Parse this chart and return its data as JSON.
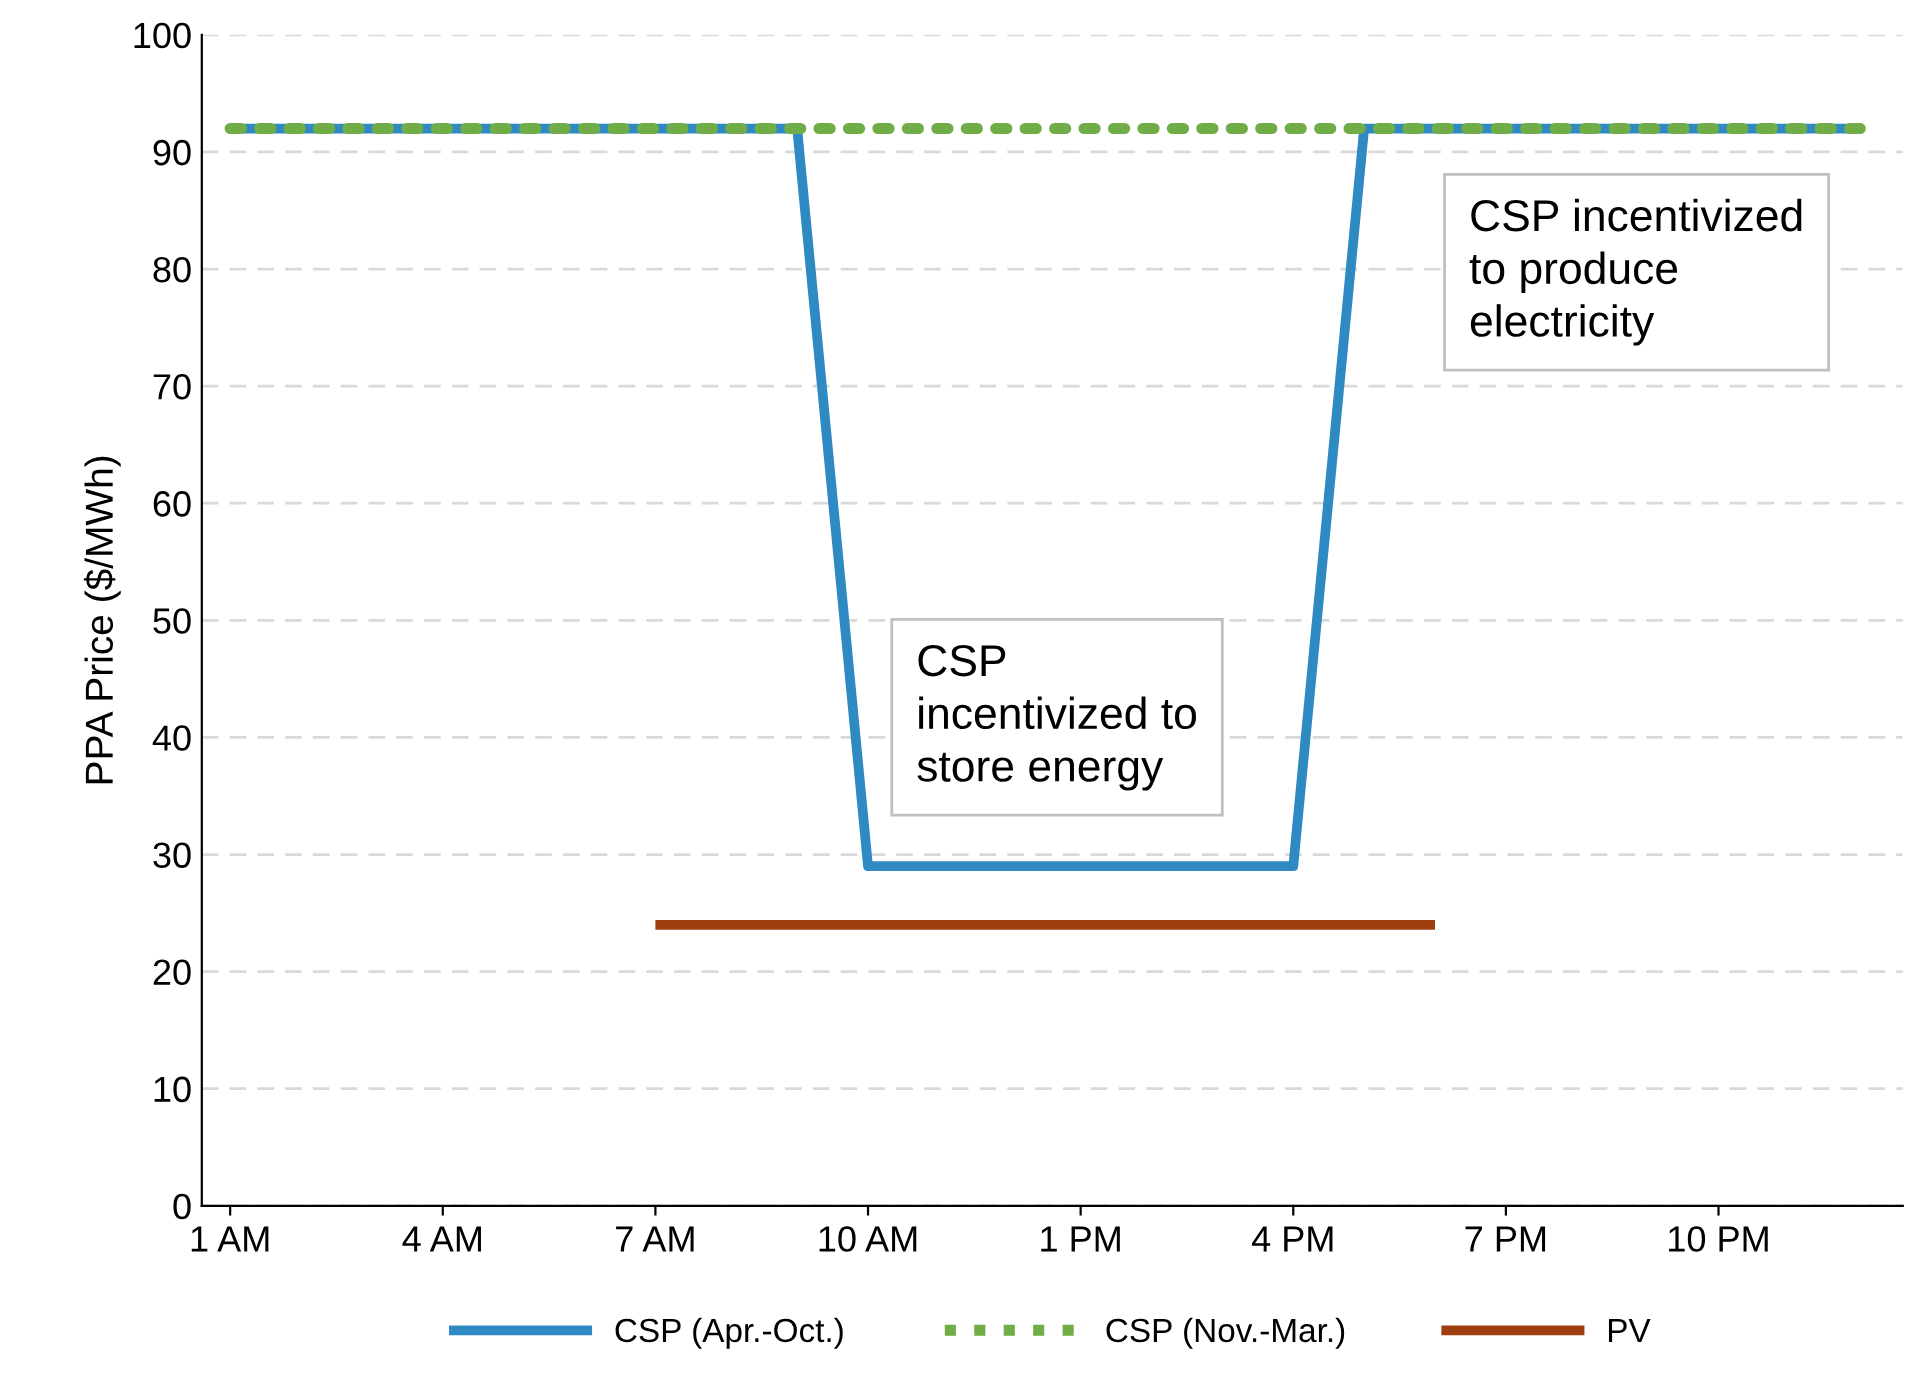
{
  "chart_data": {
    "type": "line",
    "ylabel": "PPA Price ($/MWh)",
    "categories": [
      "1 AM",
      null,
      null,
      "4 AM",
      null,
      null,
      "7 AM",
      null,
      null,
      "10 AM",
      null,
      null,
      "1 PM",
      null,
      null,
      "4 PM",
      null,
      null,
      "7 PM",
      null,
      null,
      "10 PM",
      null,
      null
    ],
    "series": [
      {
        "name": "CSP (Apr.-Oct.)",
        "color": "#2f8ac4",
        "line_style": "solid",
        "values": [
          92,
          92,
          92,
          92,
          92,
          92,
          92,
          92,
          92,
          29,
          29,
          29,
          29,
          29,
          29,
          29,
          92,
          92,
          92,
          92,
          92,
          92,
          92,
          92
        ]
      },
      {
        "name": "CSP (Nov.-Mar.)",
        "color": "#70ad47",
        "line_style": "dotted",
        "values": [
          92,
          92,
          92,
          92,
          92,
          92,
          92,
          92,
          92,
          92,
          92,
          92,
          92,
          92,
          92,
          92,
          92,
          92,
          92,
          92,
          92,
          92,
          92,
          92
        ]
      },
      {
        "name": "PV",
        "color": "#9e3f10",
        "line_style": "solid",
        "values": [
          null,
          null,
          null,
          null,
          null,
          null,
          24,
          24,
          24,
          24,
          24,
          24,
          24,
          24,
          24,
          24,
          24,
          24,
          null,
          null,
          null,
          null,
          null,
          null
        ]
      }
    ],
    "ylim": [
      0,
      100
    ],
    "yticks": [
      0,
      10,
      20,
      30,
      40,
      50,
      60,
      70,
      80,
      90,
      100
    ],
    "grid": "y",
    "legend": "bottom",
    "marker": "none",
    "annotations": [
      "CSP incentivized\nto produce\nelectricity",
      "CSP\nincentivized to\nstore energy"
    ]
  }
}
